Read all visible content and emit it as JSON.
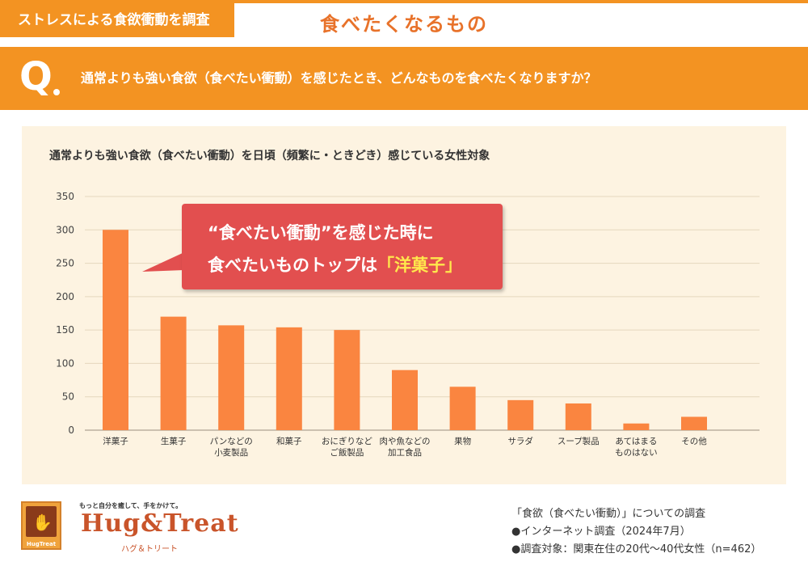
{
  "header": {
    "tag_label": "ストレスによる食欲衝動を調査",
    "title": "食べたくなるもの"
  },
  "question": {
    "marker": "Q",
    "text": "通常よりも強い食欲（食べたい衝動）を感じたとき、どんなものを食べたくなりますか？"
  },
  "callout": {
    "line1": "“食べたい衝動”を感じた時に",
    "line2_prefix": "食べたいものトップは",
    "highlight": "「洋菓子」"
  },
  "chart_data": {
    "type": "bar",
    "title": "通常よりも強い食欲（食べたい衝動）を日頃（頻繁に・ときどき）感じている女性対象",
    "xlabel": "",
    "ylabel": "",
    "categories": [
      [
        "洋菓子"
      ],
      [
        "生菓子"
      ],
      [
        "パンなどの",
        "小麦製品"
      ],
      [
        "和菓子"
      ],
      [
        "おにぎりなど",
        "ご飯製品"
      ],
      [
        "肉や魚などの",
        "加工食品"
      ],
      [
        "果物"
      ],
      [
        "サラダ"
      ],
      [
        "スープ製品"
      ],
      [
        "あてはまる",
        "ものはない"
      ],
      [
        "その他"
      ]
    ],
    "values": [
      300,
      170,
      157,
      154,
      150,
      90,
      65,
      45,
      40,
      10,
      20
    ],
    "ylim": [
      0,
      350
    ],
    "yticks": [
      0,
      50,
      100,
      150,
      200,
      250,
      300,
      350
    ],
    "grid": "horizontal",
    "bar_color": "#fa8540",
    "legend": "none"
  },
  "brand": {
    "tagline": "もっと自分を癒して、手をかけて。",
    "name": "Hug&Treat",
    "kana": "ハグ＆トリート",
    "box_label": "HugTreat"
  },
  "footnote": {
    "line1": "「食欲（食べたい衝動）」についての調査",
    "line2": "●インターネット調査（2024年7月）",
    "line3": "●調査対象：関東在住の20代～40代女性（n=462）"
  },
  "colors": {
    "accent": "#f39322",
    "panel": "#fdf3e1",
    "callout": "#e24f4f",
    "highlight": "#ffe74c"
  }
}
